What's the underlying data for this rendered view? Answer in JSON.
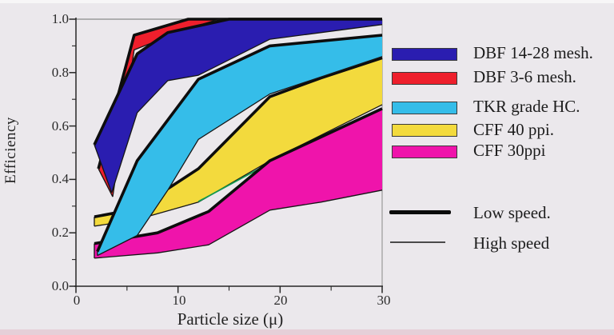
{
  "chart_data": {
    "type": "area",
    "title": "",
    "xlabel": "Particle size (μ)",
    "ylabel": "Efficiency",
    "xlim": [
      0,
      30
    ],
    "ylim": [
      0.0,
      1.0
    ],
    "grid": false,
    "legend_position": "right",
    "x_ticks_major": [
      0,
      10,
      20,
      30
    ],
    "x_tick_labels": [
      "0",
      "10",
      "20",
      "30"
    ],
    "x_ticks_minor": [
      5,
      15,
      25
    ],
    "y_ticks_major": [
      0.0,
      0.2,
      0.4,
      0.6,
      0.8,
      1.0
    ],
    "y_tick_labels": [
      "0.0",
      "0.2",
      "0.4",
      "0.6",
      "0.8",
      "1.0"
    ],
    "y_ticks_minor": [
      0.1,
      0.3,
      0.5,
      0.7,
      0.9
    ],
    "band_meaning": "Each colored band spans from the low-speed curve (thick upper line) down to the high-speed curve (thin lower line)",
    "series": [
      {
        "name": "DBF 14-28 mesh.",
        "color": "#2a1db0",
        "z": 5,
        "low": [
          [
            1.8,
            0.53
          ],
          [
            6,
            0.87
          ],
          [
            9,
            0.95
          ],
          [
            12,
            0.975
          ],
          [
            15,
            1.0
          ],
          [
            30,
            1.0
          ]
        ],
        "high": [
          [
            3.5,
            0.35
          ],
          [
            6,
            0.65
          ],
          [
            9,
            0.77
          ],
          [
            12,
            0.79
          ],
          [
            19,
            0.925
          ],
          [
            30,
            0.98
          ]
        ]
      },
      {
        "name": "DBF 3-6 mesh.",
        "color": "#ee1f2c",
        "z": 4,
        "low": [
          [
            2.2,
            0.44
          ],
          [
            5.7,
            0.94
          ],
          [
            11,
            1.0
          ],
          [
            30,
            1.0
          ]
        ],
        "high": [
          [
            3.6,
            0.335
          ],
          [
            5.7,
            0.885
          ],
          [
            11,
            0.965
          ],
          [
            14,
            1.0
          ],
          [
            30,
            1.0
          ]
        ]
      },
      {
        "name": "TKR  grade HC.",
        "color": "#35bde9",
        "z": 3,
        "low": [
          [
            2.1,
            0.13
          ],
          [
            6,
            0.47
          ],
          [
            12,
            0.775
          ],
          [
            19,
            0.9
          ],
          [
            30,
            0.94
          ]
        ],
        "high": [
          [
            2.1,
            0.115
          ],
          [
            6,
            0.19
          ],
          [
            9,
            0.36
          ],
          [
            12,
            0.55
          ],
          [
            19,
            0.72
          ],
          [
            30,
            0.86
          ]
        ]
      },
      {
        "name": "CFF 40 ppi.",
        "color": "#f3da3d",
        "z": 1,
        "low": [
          [
            1.8,
            0.26
          ],
          [
            6,
            0.29
          ],
          [
            12,
            0.44
          ],
          [
            19,
            0.71
          ],
          [
            24,
            0.78
          ],
          [
            30,
            0.855
          ]
        ],
        "high": [
          [
            1.8,
            0.225
          ],
          [
            6,
            0.25
          ],
          [
            12,
            0.315
          ],
          [
            19,
            0.47
          ],
          [
            30,
            0.68
          ]
        ]
      },
      {
        "name": "CFF 30ppi",
        "color": "#ef14ab",
        "z": 2,
        "low": [
          [
            1.8,
            0.16
          ],
          [
            8,
            0.2
          ],
          [
            13,
            0.28
          ],
          [
            19,
            0.47
          ],
          [
            30,
            0.665
          ]
        ],
        "high": [
          [
            1.8,
            0.105
          ],
          [
            8,
            0.125
          ],
          [
            13,
            0.155
          ],
          [
            19,
            0.285
          ],
          [
            24,
            0.315
          ],
          [
            30,
            0.36
          ]
        ]
      }
    ],
    "extra_line": {
      "name": "green-segment",
      "color": "#129a4d",
      "z": 1.5,
      "points": [
        [
          12,
          0.317
        ],
        [
          19.4,
          0.47
        ]
      ]
    }
  },
  "legend": {
    "items": [
      {
        "label": "DBF 14-28 mesh.",
        "color": "#2a1db0"
      },
      {
        "label": "DBF 3-6 mesh.",
        "color": "#ee1f2c"
      },
      {
        "label": "TKR  grade HC.",
        "color": "#35bde9"
      },
      {
        "label": "CFF 40 ppi.",
        "color": "#f3da3d"
      },
      {
        "label": "CFF 30ppi",
        "color": "#ef14ab"
      }
    ],
    "speed": [
      {
        "label": "Low speed.",
        "style": "thick"
      },
      {
        "label": "High speed",
        "style": "thin"
      }
    ]
  }
}
